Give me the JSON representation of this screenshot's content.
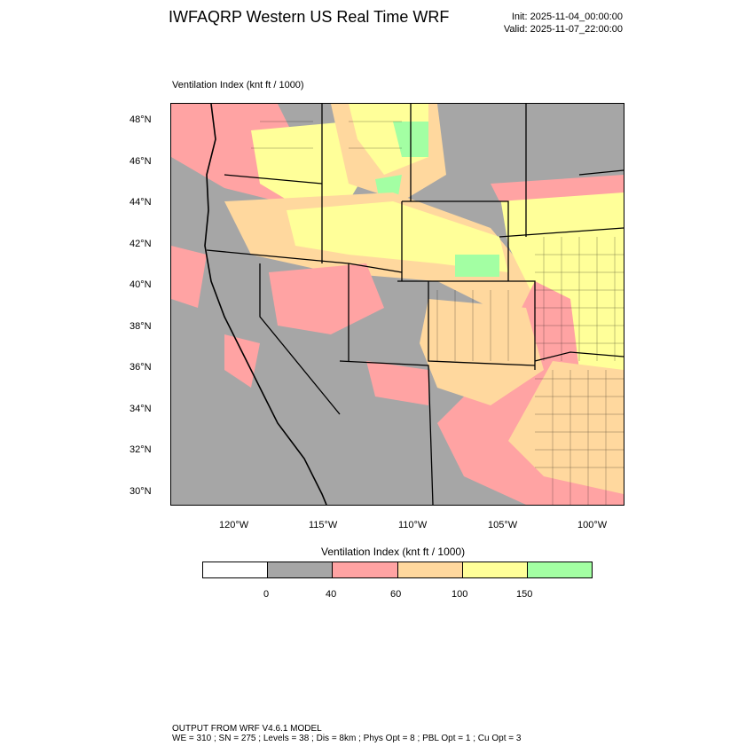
{
  "header": {
    "title": "IWFAQRP Western US Real Time WRF",
    "init": "Init: 2025-11-04_00:00:00",
    "valid": "Valid: 2025-11-07_22:00:00"
  },
  "field_label": "Ventilation Index   (knt ft / 1000)",
  "map": {
    "lat_ticks": [
      "48°N",
      "46°N",
      "44°N",
      "42°N",
      "40°N",
      "38°N",
      "36°N",
      "34°N",
      "32°N",
      "30°N"
    ],
    "lon_ticks": [
      "120°W",
      "115°W",
      "110°W",
      "105°W",
      "100°W"
    ],
    "background_color": "#a6a6a6"
  },
  "colorbar": {
    "title": "Ventilation Index   (knt ft / 1000)",
    "colors": [
      "#ffffff",
      "#a6a6a6",
      "#ffa3a3",
      "#ffd89e",
      "#ffff99",
      "#a3ffa3"
    ],
    "labels": [
      "0",
      "40",
      "60",
      "100",
      "150"
    ]
  },
  "footer": {
    "line1": "OUTPUT FROM WRF V4.6.1 MODEL",
    "line2": "WE = 310 ; SN = 275 ; Levels = 38 ; Dis = 8km ; Phys Opt = 8 ; PBL Opt = 1 ; Cu Opt = 3"
  }
}
